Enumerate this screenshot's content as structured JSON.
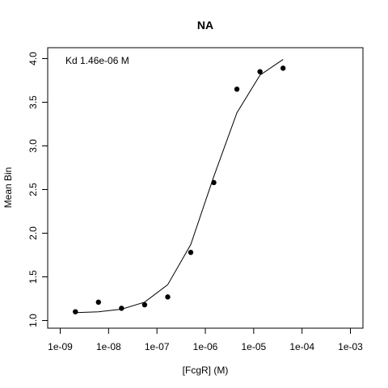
{
  "chart_data": {
    "type": "scatter",
    "title": "NA",
    "xlabel": "[FcgR] (M)",
    "ylabel": "Mean Bin",
    "x_scale": "log",
    "xlim": [
      1e-09,
      0.001
    ],
    "ylim": [
      1.0,
      4.0
    ],
    "x_ticks": [
      1e-09,
      1e-08,
      1e-07,
      1e-06,
      1e-05,
      0.0001,
      0.001
    ],
    "x_tick_labels": [
      "1e-09",
      "1e-08",
      "1e-07",
      "1e-06",
      "1e-05",
      "1e-04",
      "1e-03"
    ],
    "y_ticks": [
      1.0,
      1.5,
      2.0,
      2.5,
      3.0,
      3.5,
      4.0
    ],
    "y_tick_labels": [
      "1.0",
      "1.5",
      "2.0",
      "2.5",
      "3.0",
      "3.5",
      "4.0"
    ],
    "annotation": "Kd 1.46e-06 M",
    "points": {
      "x": [
        2.06e-09,
        6.17e-09,
        1.85e-08,
        5.56e-08,
        1.67e-07,
        5e-07,
        1.5e-06,
        4.5e-06,
        1.35e-05,
        4.05e-05
      ],
      "y": [
        1.1,
        1.21,
        1.14,
        1.18,
        1.27,
        1.78,
        2.58,
        3.65,
        3.85,
        3.89
      ]
    },
    "fit_line": {
      "x": [
        2.06e-09,
        6.17e-09,
        1.85e-08,
        5.56e-08,
        1.67e-07,
        5e-07,
        1.5e-06,
        4.5e-06,
        1.35e-05,
        4.05e-05
      ],
      "y": [
        1.09,
        1.1,
        1.13,
        1.21,
        1.41,
        1.87,
        2.65,
        3.38,
        3.81,
        3.99
      ]
    },
    "grid": false,
    "legend": "none"
  }
}
